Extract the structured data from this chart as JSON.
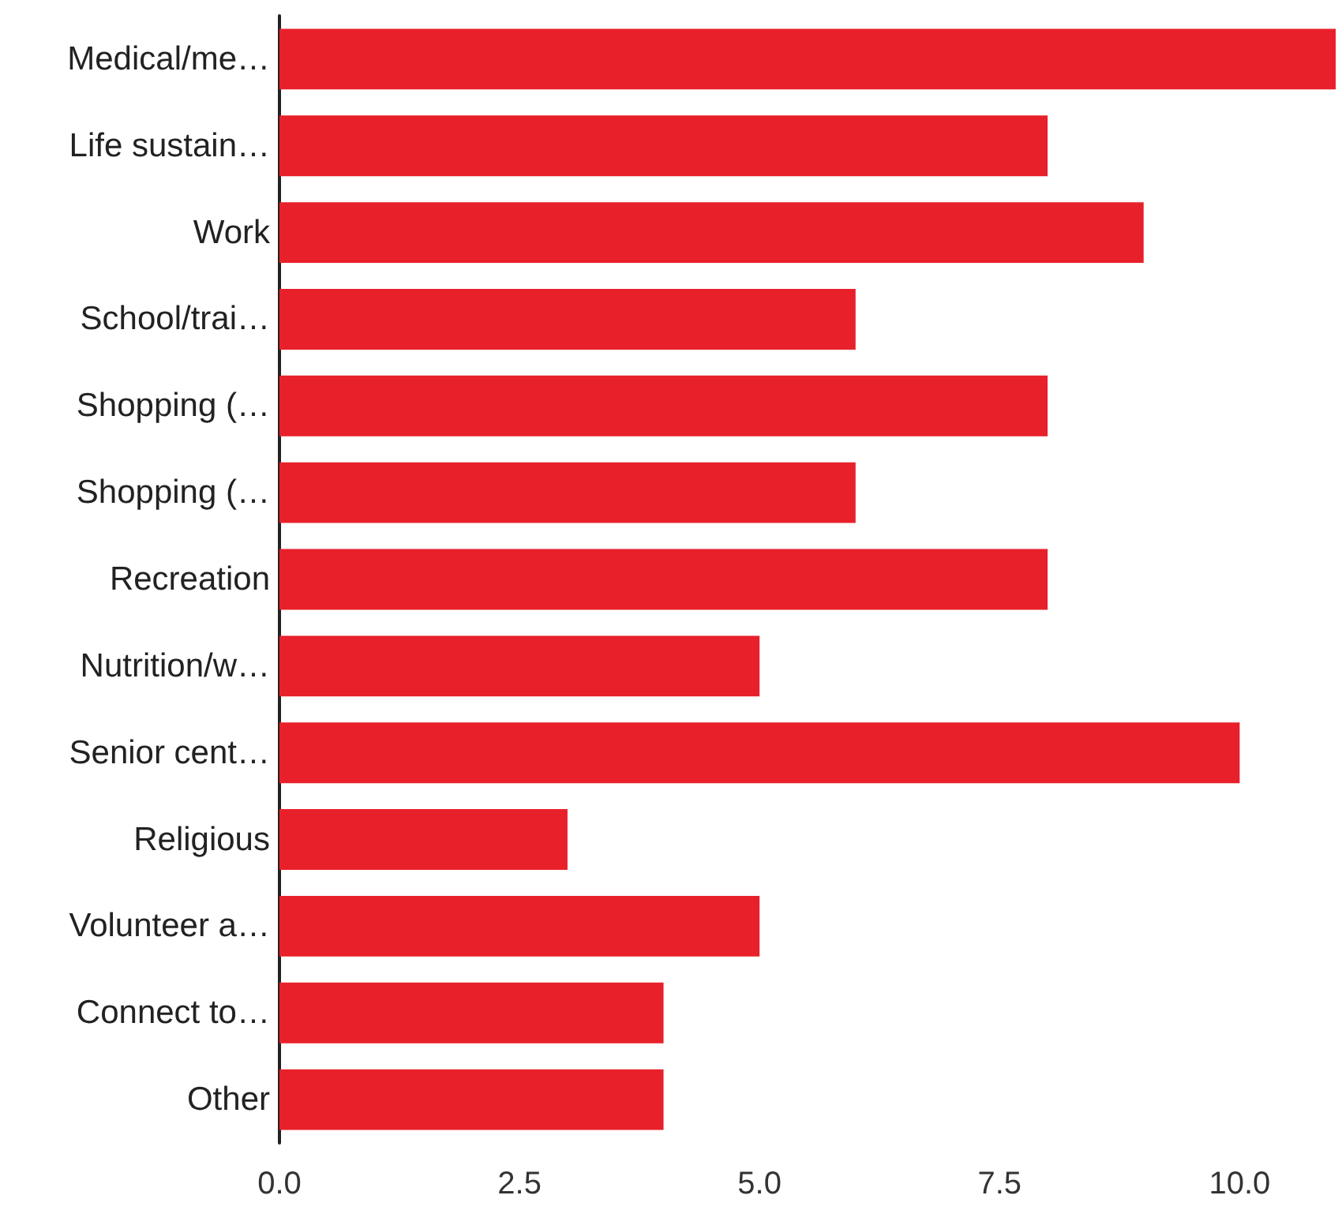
{
  "chart_data": {
    "type": "bar",
    "orientation": "horizontal",
    "categories": [
      "Medical/me…",
      "Life sustain…",
      "Work",
      "School/trai…",
      "Shopping (…",
      "Shopping (…",
      "Recreation",
      "Nutrition/w…",
      "Senior cent…",
      "Religious",
      "Volunteer a…",
      "Connect to…",
      "Other"
    ],
    "values": [
      11,
      8,
      9,
      6,
      8,
      6,
      8,
      5,
      10,
      3,
      5,
      4,
      4
    ],
    "color": "#e8202a",
    "xlim": [
      0,
      11
    ],
    "xticks": [
      {
        "value": 0,
        "label": "0.0"
      },
      {
        "value": 2.5,
        "label": "2.5"
      },
      {
        "value": 5,
        "label": "5.0"
      },
      {
        "value": 7.5,
        "label": "7.5"
      },
      {
        "value": 10,
        "label": "10.0"
      }
    ],
    "grid": false
  }
}
